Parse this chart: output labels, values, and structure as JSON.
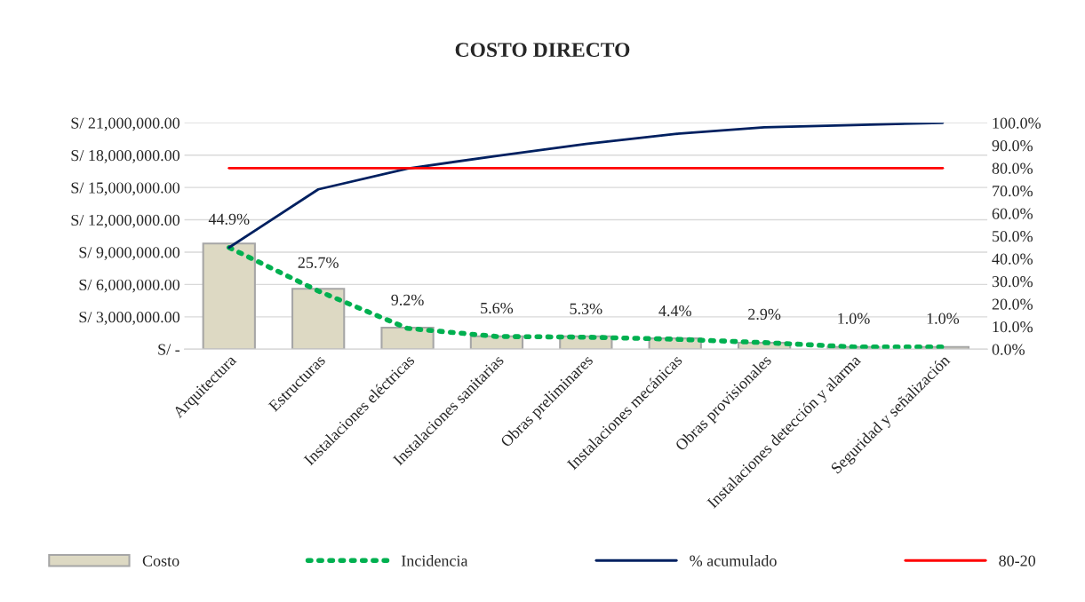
{
  "chart_data": {
    "type": "bar",
    "title": "COSTO DIRECTO",
    "categories": [
      "Arquitectura",
      "Estructuras",
      "Instalaciones eléctricas",
      "Instalaciones sanitarias",
      "Obras preliminares",
      "Instalaciones mecánicas",
      "Obras provisionales",
      "Instalaciones detección y alarma",
      "Seguridad y señalización"
    ],
    "series": [
      {
        "name": "Costo",
        "color": "#ddd9c3",
        "values": [
          9800000,
          5600000,
          2000000,
          1200000,
          1200000,
          1000000,
          600000,
          200000,
          200000
        ]
      },
      {
        "name": "Incidencia",
        "type": "line",
        "axis": "y2",
        "color": "#00b050",
        "line_style": "dotted",
        "values": [
          44.9,
          25.7,
          9.2,
          5.6,
          5.3,
          4.4,
          2.9,
          1.0,
          1.0
        ],
        "value_labels": [
          "44.9%",
          "25.7%",
          "9.2%",
          "5.6%",
          "5.3%",
          "4.4%",
          "2.9%",
          "1.0%",
          "1.0%"
        ]
      },
      {
        "name": "% acumulado",
        "type": "line",
        "axis": "y2",
        "color": "#002060",
        "line_style": "solid",
        "values": [
          44.9,
          70.6,
          79.8,
          85.4,
          90.7,
          95.1,
          98.0,
          99.0,
          100.0
        ]
      },
      {
        "name": "80-20",
        "type": "line",
        "axis": "y2",
        "color": "#ff0000",
        "line_style": "solid",
        "values": [
          80,
          80,
          80,
          80,
          80,
          80,
          80,
          80,
          80
        ]
      }
    ],
    "ylim": [
      0,
      21000000
    ],
    "yticks": [
      {
        "value": 0,
        "label": "S/ -"
      },
      {
        "value": 3000000,
        "label": "S/ 3,000,000.00"
      },
      {
        "value": 6000000,
        "label": "S/ 6,000,000.00"
      },
      {
        "value": 9000000,
        "label": "S/ 9,000,000.00"
      },
      {
        "value": 12000000,
        "label": "S/ 12,000,000.00"
      },
      {
        "value": 15000000,
        "label": "S/ 15,000,000.00"
      },
      {
        "value": 18000000,
        "label": "S/ 18,000,000.00"
      },
      {
        "value": 21000000,
        "label": "S/ 21,000,000.00"
      }
    ],
    "y2lim": [
      0,
      100
    ],
    "y2ticks": [
      {
        "value": 0,
        "label": "0.0%"
      },
      {
        "value": 10,
        "label": "10.0%"
      },
      {
        "value": 20,
        "label": "20.0%"
      },
      {
        "value": 30,
        "label": "30.0%"
      },
      {
        "value": 40,
        "label": "40.0%"
      },
      {
        "value": 50,
        "label": "50.0%"
      },
      {
        "value": 60,
        "label": "60.0%"
      },
      {
        "value": 70,
        "label": "70.0%"
      },
      {
        "value": 80,
        "label": "80.0%"
      },
      {
        "value": 90,
        "label": "90.0%"
      },
      {
        "value": 100,
        "label": "100.0%"
      }
    ],
    "grid": "y",
    "legend": "bottom"
  }
}
